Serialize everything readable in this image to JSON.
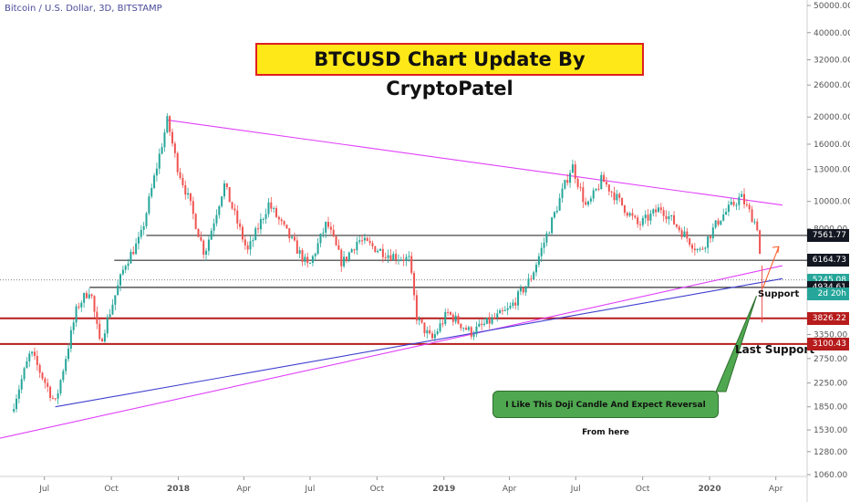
{
  "chart_data": {
    "type": "candlestick",
    "header": "Bitcoin / U.S. Dollar, 3D, BITSTAMP",
    "title": "BTCUSD Chart Update By CryptoPatel",
    "y_scale": "log",
    "y_ticks": [
      50000,
      40000,
      32000,
      26000,
      20000,
      16000,
      13000,
      10000,
      8000,
      3350,
      2750,
      2250,
      1850,
      1530,
      1280,
      1060
    ],
    "y_tick_labels": [
      "50000.00",
      "40000.00",
      "32000.00",
      "26000.00",
      "20000.00",
      "16000.00",
      "13000.00",
      "10000.00",
      "8000.00",
      "3350.00",
      "2750.00",
      "2250.00",
      "1850.00",
      "1530.00",
      "1280.00",
      "1060.00"
    ],
    "x_ticks": [
      "Jul",
      "Oct",
      "2018",
      "Apr",
      "Jul",
      "Oct",
      "2019",
      "Apr",
      "Jul",
      "Oct",
      "2020",
      "Apr"
    ],
    "x_tick_dates": [
      "2017-07-01",
      "2017-10-01",
      "2018-01-01",
      "2018-04-01",
      "2018-07-01",
      "2018-10-01",
      "2019-01-01",
      "2019-04-01",
      "2019-07-01",
      "2019-10-01",
      "2020-01-01",
      "2020-04-01"
    ],
    "price_path": [
      [
        "2017-05-20",
        1900
      ],
      [
        "2017-06-12",
        2900
      ],
      [
        "2017-07-16",
        1900
      ],
      [
        "2017-08-15",
        4200
      ],
      [
        "2017-09-02",
        4900
      ],
      [
        "2017-09-15",
        3100
      ],
      [
        "2017-10-20",
        6000
      ],
      [
        "2017-11-10",
        7400
      ],
      [
        "2017-12-17",
        19500
      ],
      [
        "2017-12-30",
        13500
      ],
      [
        "2018-01-16",
        10000
      ],
      [
        "2018-02-06",
        6500
      ],
      [
        "2018-03-05",
        11500
      ],
      [
        "2018-04-06",
        6600
      ],
      [
        "2018-05-05",
        9800
      ],
      [
        "2018-06-29",
        5800
      ],
      [
        "2018-07-24",
        8400
      ],
      [
        "2018-08-14",
        6000
      ],
      [
        "2018-09-05",
        7300
      ],
      [
        "2018-10-15",
        6500
      ],
      [
        "2018-11-14",
        6200
      ],
      [
        "2018-11-25",
        3800
      ],
      [
        "2018-12-15",
        3200
      ],
      [
        "2019-01-06",
        4000
      ],
      [
        "2019-02-07",
        3400
      ],
      [
        "2019-03-31",
        4100
      ],
      [
        "2019-04-30",
        5300
      ],
      [
        "2019-05-30",
        8600
      ],
      [
        "2019-06-26",
        13500
      ],
      [
        "2019-07-16",
        9400
      ],
      [
        "2019-08-06",
        12000
      ],
      [
        "2019-09-25",
        8200
      ],
      [
        "2019-10-26",
        9500
      ],
      [
        "2019-12-18",
        6600
      ],
      [
        "2020-01-15",
        8700
      ],
      [
        "2020-02-13",
        10400
      ],
      [
        "2020-03-08",
        8000
      ],
      [
        "2020-03-13",
        4700
      ]
    ],
    "horizontal_levels": [
      {
        "label": "7561.77",
        "value": 7561.77,
        "color": "#333333",
        "tag_color": "#131722"
      },
      {
        "label": "6164.73",
        "value": 6164.73,
        "color": "#333333",
        "tag_color": "#131722"
      },
      {
        "label": "5245.08",
        "value": 5245.08,
        "color": "#555555",
        "tag_color": "#26a69a"
      },
      {
        "label": "4934.61",
        "value": 4934.61,
        "color": "#333333",
        "tag_color": "#131722"
      },
      {
        "label": "3826.22",
        "value": 3826.22,
        "color": "#b71c1c",
        "tag_color": "#b71c1c"
      },
      {
        "label": "3100.43",
        "value": 3100.43,
        "color": "#b71c1c",
        "tag_color": "#b71c1c"
      }
    ],
    "countdown_label": "2d 20h",
    "trendlines": [
      {
        "from": [
          "2017-12-17",
          19500
        ],
        "to": [
          "2020-04-10",
          9700
        ],
        "color": "#e040fb"
      },
      {
        "from": [
          "2017-05-01",
          1430
        ],
        "to": [
          "2020-04-10",
          5900
        ],
        "color": "#e040fb"
      },
      {
        "from": [
          "2017-07-16",
          1850
        ],
        "to": [
          "2020-04-10",
          5300
        ],
        "color": "#3f3fd0"
      }
    ],
    "annotations": {
      "support": "Support",
      "last_support": "Last Support",
      "note": "I Like This Doji Candle And Expect Reversal From here"
    }
  }
}
